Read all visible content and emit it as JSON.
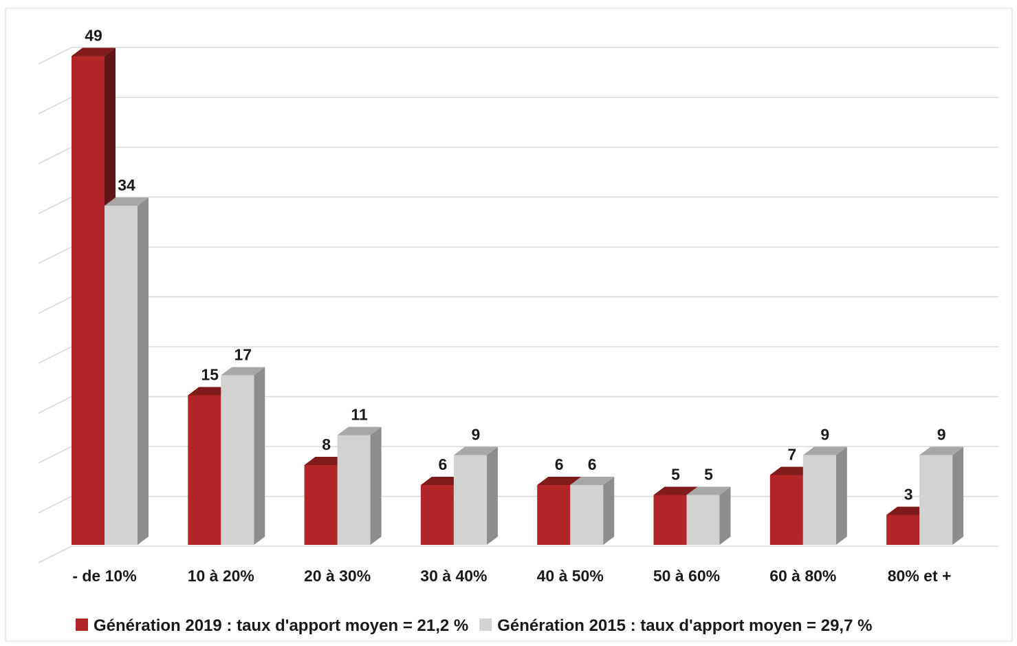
{
  "chart_data": {
    "type": "bar",
    "categories": [
      "- de 10%",
      "10 à 20%",
      "20 à 30%",
      "30 à 40%",
      "40 à 50%",
      "50 à 60%",
      "60 à 80%",
      "80% et +"
    ],
    "series": [
      {
        "name": "Génération 2019 : taux d'apport moyen = 21,2 %",
        "values": [
          49,
          15,
          8,
          6,
          6,
          5,
          7,
          3
        ],
        "color": "#b22627"
      },
      {
        "name": "Génération 2015 : taux d'apport moyen = 29,7 %",
        "values": [
          34,
          17,
          11,
          9,
          6,
          5,
          9,
          9
        ],
        "color": "#d3d2d3"
      }
    ],
    "ylim": [
      0,
      50
    ],
    "grid": true,
    "three_d": true,
    "legend_position": "bottom"
  }
}
